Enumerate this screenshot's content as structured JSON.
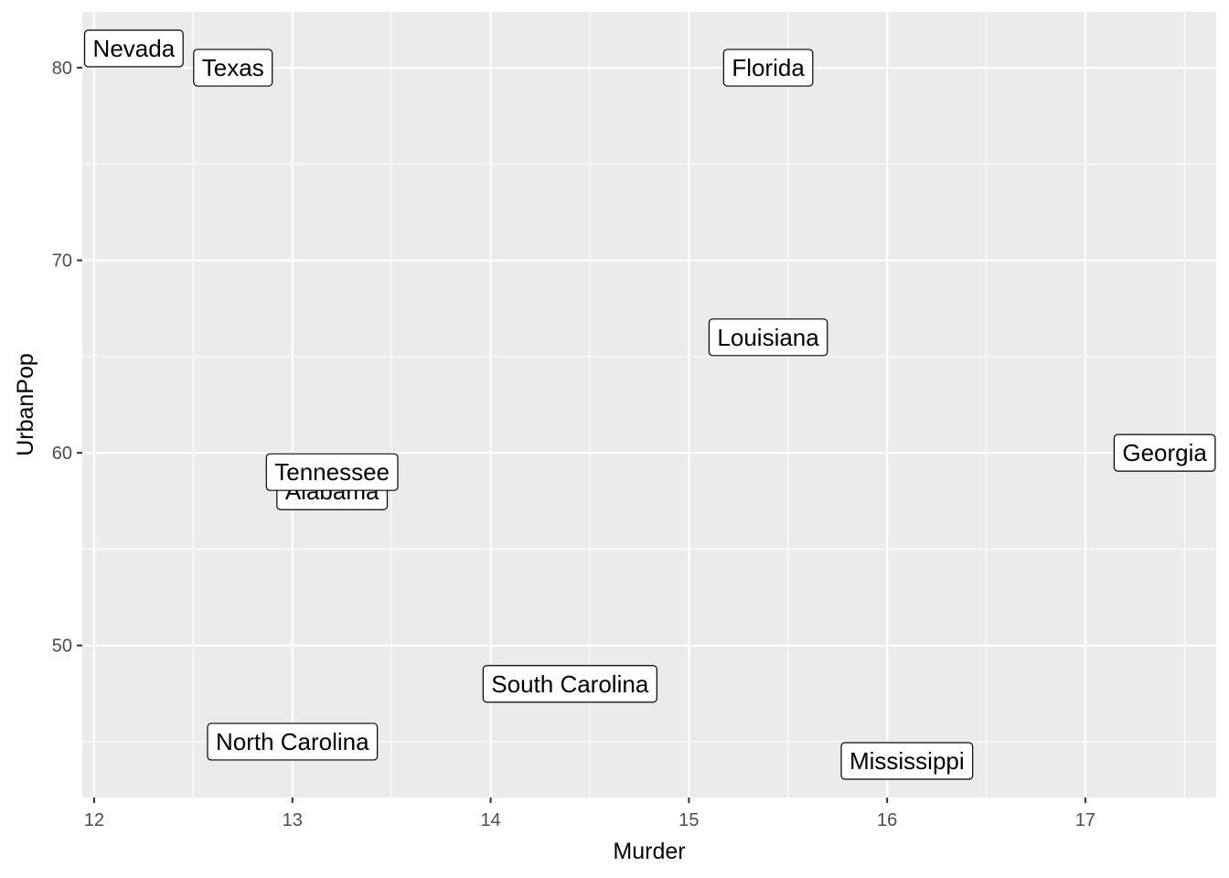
{
  "chart_data": {
    "type": "scatter",
    "xlabel": "Murder",
    "ylabel": "UrbanPop",
    "xlim": [
      11.94,
      17.66
    ],
    "ylim": [
      42.1,
      82.9
    ],
    "x_ticks": [
      12,
      13,
      14,
      15,
      16,
      17
    ],
    "y_ticks": [
      50,
      60,
      70,
      80
    ],
    "grid": true,
    "colors": {
      "panel": "#EBEBEB",
      "grid": "#FFFFFF",
      "label_fill": "#FFFFFF",
      "label_border": "#000000"
    },
    "points": [
      {
        "label": "Nevada",
        "x": 12.2,
        "y": 81
      },
      {
        "label": "Texas",
        "x": 12.7,
        "y": 80
      },
      {
        "label": "Florida",
        "x": 15.4,
        "y": 80
      },
      {
        "label": "Louisiana",
        "x": 15.4,
        "y": 66
      },
      {
        "label": "Georgia",
        "x": 17.4,
        "y": 60
      },
      {
        "label": "Alabama",
        "x": 13.2,
        "y": 58
      },
      {
        "label": "Tennessee",
        "x": 13.2,
        "y": 59
      },
      {
        "label": "South Carolina",
        "x": 14.4,
        "y": 48
      },
      {
        "label": "North Carolina",
        "x": 13.0,
        "y": 45
      },
      {
        "label": "Mississippi",
        "x": 16.1,
        "y": 44
      }
    ]
  }
}
